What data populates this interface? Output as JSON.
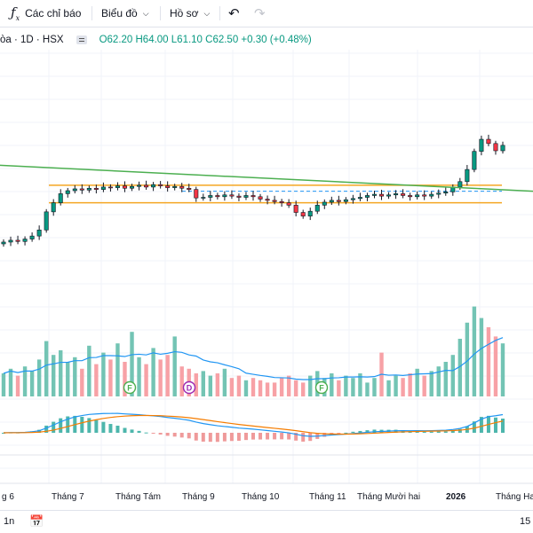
{
  "toolbar": {
    "indicators_label": "Các chỉ báo",
    "chart_menu_label": "Biểu đồ",
    "profile_menu_label": "Hồ sơ"
  },
  "legend": {
    "symbol": "òa · 1D · HSX",
    "ohlc": "O62.20  H64.00  L61.10  C62.50  +0.30 (+0.48%)"
  },
  "bottom": {
    "range_label": "1n",
    "right_value": "15"
  },
  "colors": {
    "up": "#089981",
    "down": "#f23645",
    "volume_up": "#73c4b4",
    "volume_down": "#f7a1a6",
    "trend": "#4caf50",
    "level": "#f5a623",
    "avg": "#2196f3",
    "macd_signal": "#f57c00"
  },
  "badges": [
    {
      "letter": "F",
      "color": "#4caf50"
    },
    {
      "letter": "D",
      "color": "#9c27b0"
    },
    {
      "letter": "F",
      "color": "#4caf50"
    }
  ],
  "chart_data": {
    "type": "candlestick",
    "x_tick_labels": [
      "g 6",
      "Tháng 7",
      "Tháng Tám",
      "Tháng 9",
      "Tháng 10",
      "Tháng 11",
      "Tháng Mười hai",
      "2026",
      "Tháng Hai"
    ],
    "close_approx": [
      46.5,
      46.8,
      46.6,
      47.0,
      47.5,
      48.5,
      51.5,
      53.0,
      54.5,
      55.0,
      55.3,
      55.1,
      55.4,
      55.2,
      55.6,
      55.5,
      55.8,
      55.4,
      55.7,
      55.9,
      55.6,
      56.0,
      55.8,
      55.5,
      55.7,
      55.4,
      55.2,
      53.8,
      53.9,
      54.2,
      54.0,
      54.3,
      54.1,
      53.9,
      54.2,
      54.0,
      53.6,
      53.4,
      53.2,
      53.0,
      52.6,
      51.4,
      50.8,
      51.6,
      52.6,
      53.1,
      53.4,
      53.2,
      53.5,
      53.7,
      53.9,
      54.2,
      54.4,
      54.1,
      54.3,
      54.5,
      54.2,
      54.0,
      54.3,
      54.1,
      54.4,
      54.6,
      54.8,
      55.6,
      56.5,
      58.5,
      61.5,
      63.5,
      62.8,
      61.6,
      62.5
    ],
    "levels": [
      55.9,
      53.0
    ],
    "trendline_endpoints_price": [
      59.2,
      54.9
    ],
    "volume_approx": [
      1.0,
      1.2,
      0.9,
      1.3,
      1.1,
      1.6,
      2.4,
      1.8,
      2.0,
      1.5,
      1.7,
      1.2,
      2.2,
      1.4,
      1.9,
      1.6,
      2.3,
      1.5,
      2.8,
      1.7,
      1.4,
      2.1,
      1.6,
      1.8,
      2.6,
      1.3,
      1.2,
      1.0,
      1.1,
      0.9,
      1.0,
      1.2,
      0.8,
      0.9,
      0.7,
      0.8,
      0.7,
      0.6,
      0.6,
      0.8,
      0.9,
      0.7,
      0.6,
      0.9,
      1.1,
      0.8,
      1.0,
      0.7,
      0.9,
      0.8,
      1.0,
      0.6,
      0.8,
      1.9,
      0.7,
      0.9,
      0.8,
      1.0,
      1.2,
      0.9,
      1.1,
      1.3,
      1.5,
      1.8,
      2.5,
      3.2,
      3.9,
      3.4,
      3.0,
      2.6,
      2.3
    ]
  }
}
